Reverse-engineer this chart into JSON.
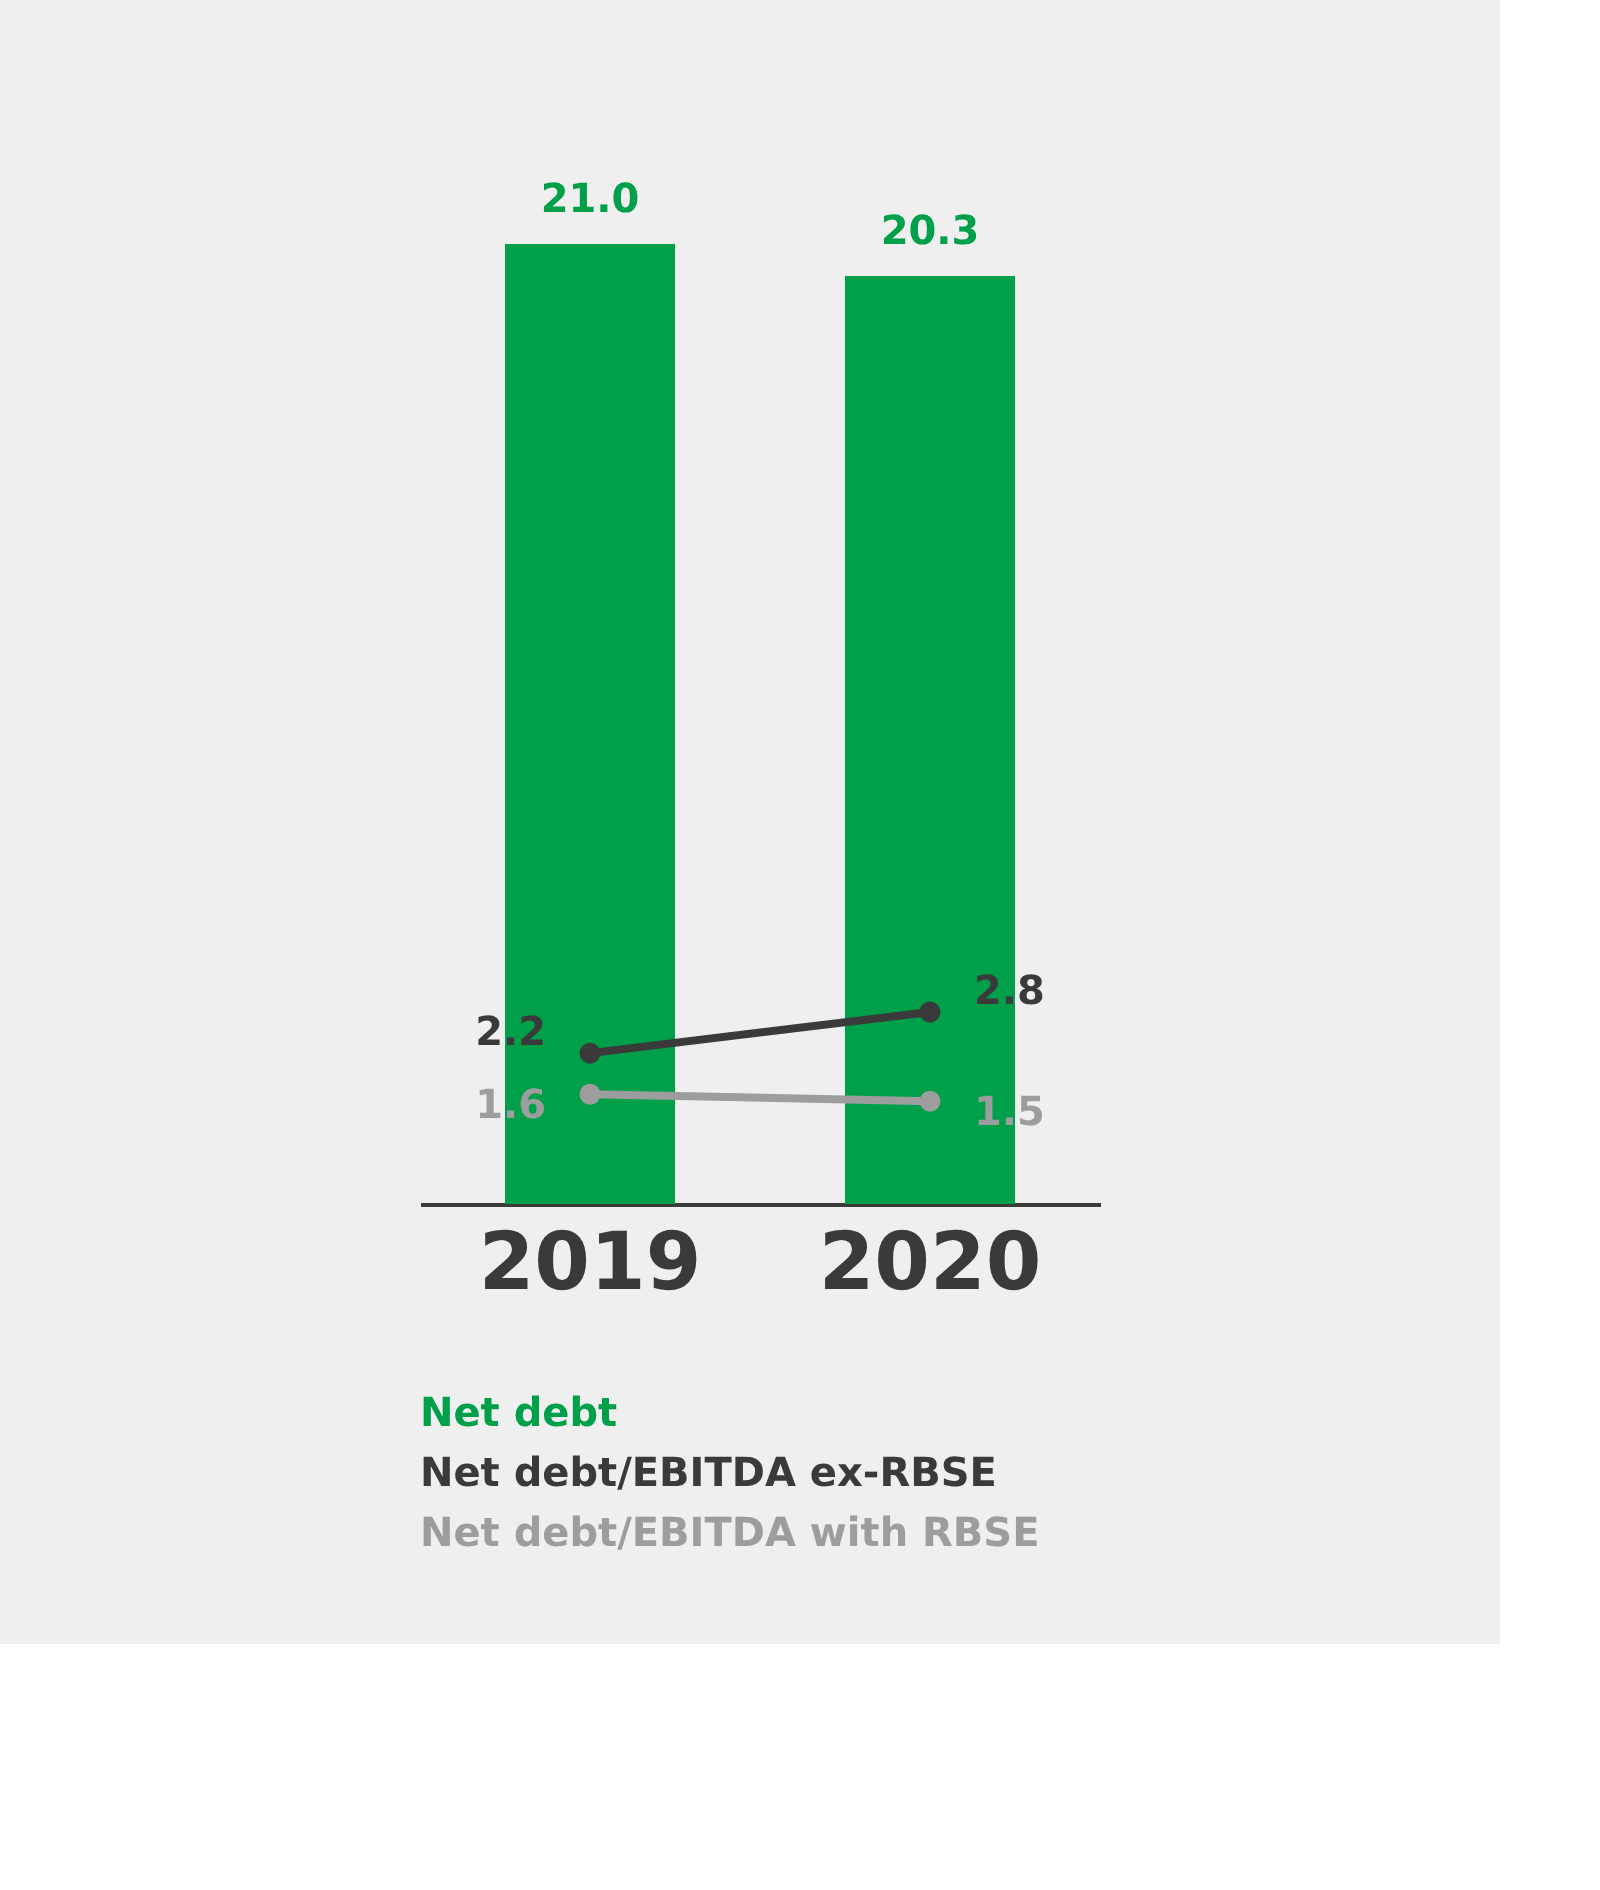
{
  "chart_data": {
    "type": "bar",
    "categories": [
      "2019",
      "2020"
    ],
    "series": [
      {
        "name": "Net debt",
        "color": "#00a04b",
        "values": [
          21.0,
          20.3
        ],
        "value_labels": [
          "21.0",
          "20.3"
        ]
      },
      {
        "name": "Net debt/EBITDA ex-RBSE",
        "type": "line",
        "axis": "y2",
        "color": "#3a3a3a",
        "values": [
          2.2,
          2.8
        ],
        "value_labels": [
          "2.2",
          "2.8"
        ]
      },
      {
        "name": "Net debt/EBITDA with RBSE",
        "type": "line",
        "axis": "y2",
        "color": "#9d9d9d",
        "values": [
          1.6,
          1.5
        ],
        "value_labels": [
          "1.6",
          "1.5"
        ]
      }
    ],
    "marker": "circle",
    "legend": "bottom",
    "grid": false
  }
}
